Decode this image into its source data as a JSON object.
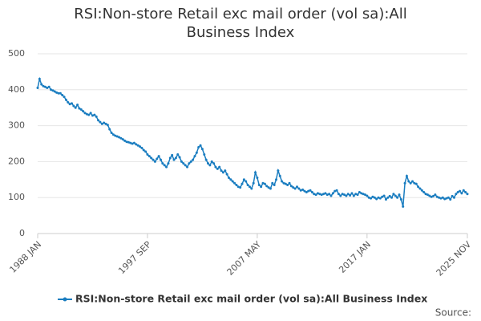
{
  "chart_data": {
    "type": "line",
    "title": "RSI:Non-store Retail exc mail order (vol sa):All Business Index",
    "source_label": "Source:",
    "categories": [
      "1988 JAN",
      null,
      null,
      null,
      null,
      null,
      null,
      null,
      null,
      null,
      null,
      null,
      null,
      null,
      null,
      null,
      null,
      null,
      null,
      null,
      null,
      null,
      null,
      null,
      null,
      null,
      null,
      null,
      null,
      null,
      null,
      null,
      null,
      null,
      null,
      null,
      null,
      null,
      null,
      null,
      null,
      null,
      null,
      null,
      null,
      null,
      null,
      null,
      null,
      null,
      null,
      null,
      null,
      null,
      null,
      null,
      null,
      null,
      "1997 SEP",
      null,
      null,
      null,
      null,
      null,
      null,
      null,
      null,
      null,
      null,
      null,
      null,
      null,
      null,
      null,
      null,
      null,
      null,
      null,
      null,
      null,
      null,
      null,
      null,
      null,
      null,
      null,
      null,
      null,
      null,
      null,
      null,
      null,
      null,
      null,
      null,
      null,
      null,
      null,
      null,
      null,
      null,
      null,
      null,
      null,
      null,
      null,
      null,
      null,
      null,
      null,
      null,
      null,
      null,
      null,
      null,
      null,
      "2007 MAY",
      null,
      null,
      null,
      null,
      null,
      null,
      null,
      null,
      null,
      null,
      null,
      null,
      null,
      null,
      null,
      null,
      null,
      null,
      null,
      null,
      null,
      null,
      null,
      null,
      null,
      null,
      null,
      null,
      null,
      null,
      null,
      null,
      null,
      null,
      null,
      null,
      null,
      null,
      null,
      null,
      null,
      null,
      null,
      null,
      null,
      null,
      null,
      null,
      null,
      null,
      null,
      null,
      null,
      null,
      null,
      null,
      null,
      "2017 JAN",
      null,
      null,
      null,
      null,
      null,
      null,
      null,
      null,
      null,
      null,
      null,
      null,
      null,
      null,
      null,
      null,
      null,
      null,
      null,
      null,
      null,
      null,
      null,
      null,
      null,
      null,
      null,
      null,
      null,
      null,
      null,
      null,
      null,
      null,
      null,
      null,
      null,
      null,
      null,
      null,
      null,
      null,
      null,
      null,
      null,
      null,
      null,
      null,
      null,
      null,
      null,
      null,
      "2025 NOV"
    ],
    "series": [
      {
        "name": "RSI:Non-store Retail exc mail order (vol sa):All Business Index",
        "color": "#1a7dc0",
        "values": [
          405,
          430,
          415,
          410,
          408,
          405,
          408,
          400,
          398,
          395,
          392,
          390,
          390,
          385,
          380,
          372,
          365,
          360,
          362,
          355,
          350,
          358,
          348,
          345,
          340,
          335,
          332,
          330,
          335,
          328,
          330,
          325,
          315,
          310,
          305,
          308,
          305,
          302,
          290,
          280,
          275,
          272,
          270,
          268,
          265,
          262,
          258,
          255,
          254,
          252,
          250,
          252,
          248,
          245,
          242,
          238,
          232,
          228,
          220,
          215,
          210,
          205,
          200,
          208,
          215,
          205,
          195,
          190,
          185,
          195,
          210,
          218,
          205,
          210,
          220,
          212,
          200,
          195,
          190,
          185,
          195,
          200,
          205,
          215,
          225,
          240,
          245,
          235,
          220,
          205,
          195,
          190,
          200,
          195,
          185,
          180,
          185,
          175,
          170,
          175,
          165,
          155,
          150,
          145,
          140,
          135,
          130,
          128,
          138,
          150,
          145,
          135,
          130,
          125,
          140,
          170,
          155,
          135,
          130,
          140,
          138,
          132,
          128,
          125,
          140,
          135,
          150,
          175,
          160,
          145,
          140,
          138,
          135,
          140,
          132,
          128,
          125,
          130,
          125,
          120,
          122,
          118,
          115,
          118,
          120,
          115,
          110,
          108,
          112,
          110,
          108,
          110,
          112,
          108,
          110,
          105,
          112,
          118,
          120,
          110,
          105,
          110,
          108,
          105,
          110,
          106,
          112,
          105,
          110,
          108,
          115,
          112,
          110,
          108,
          105,
          100,
          98,
          102,
          100,
          96,
          100,
          98,
          102,
          105,
          95,
          100,
          104,
          100,
          110,
          105,
          100,
          108,
          95,
          75,
          140,
          160,
          145,
          140,
          145,
          140,
          138,
          130,
          125,
          120,
          115,
          110,
          108,
          105,
          102,
          104,
          108,
          102,
          100,
          98,
          100,
          96,
          98,
          100,
          95,
          104,
          100,
          110,
          115,
          118,
          112,
          120,
          115,
          110
        ]
      }
    ],
    "ylim": [
      0,
      500
    ],
    "yticks": [
      0,
      100,
      200,
      300,
      400,
      500
    ],
    "grid": true
  }
}
